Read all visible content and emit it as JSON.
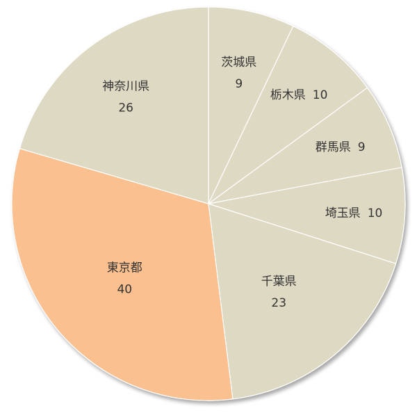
{
  "chart_data": {
    "type": "pie",
    "title": "",
    "legend": "none",
    "start_angle_deg": 0,
    "direction": "clockwise",
    "slices": [
      {
        "label": "茨城県",
        "value": 9,
        "value_text": "9",
        "color": "#ddd9c3",
        "layout": "two-line"
      },
      {
        "label": "栃木県",
        "value": 10,
        "value_text": "10",
        "color": "#ddd9c3",
        "layout": "inline"
      },
      {
        "label": "群馬県",
        "value": 9,
        "value_text": "9",
        "color": "#ddd9c3",
        "layout": "inline"
      },
      {
        "label": "埼玉県",
        "value": 10,
        "value_text": "10",
        "color": "#ddd9c3",
        "layout": "inline"
      },
      {
        "label": "千葉県",
        "value": 23,
        "value_text": "23",
        "color": "#ddd9c3",
        "layout": "two-line"
      },
      {
        "label": "東京都",
        "value": 40,
        "value_text": "40",
        "color": "#fac090",
        "layout": "two-line"
      },
      {
        "label": "神奈川県",
        "value": 26,
        "value_text": "26",
        "color": "#ddd9c3",
        "layout": "two-line"
      }
    ],
    "border_color": "#ffffff",
    "shadow": true
  }
}
